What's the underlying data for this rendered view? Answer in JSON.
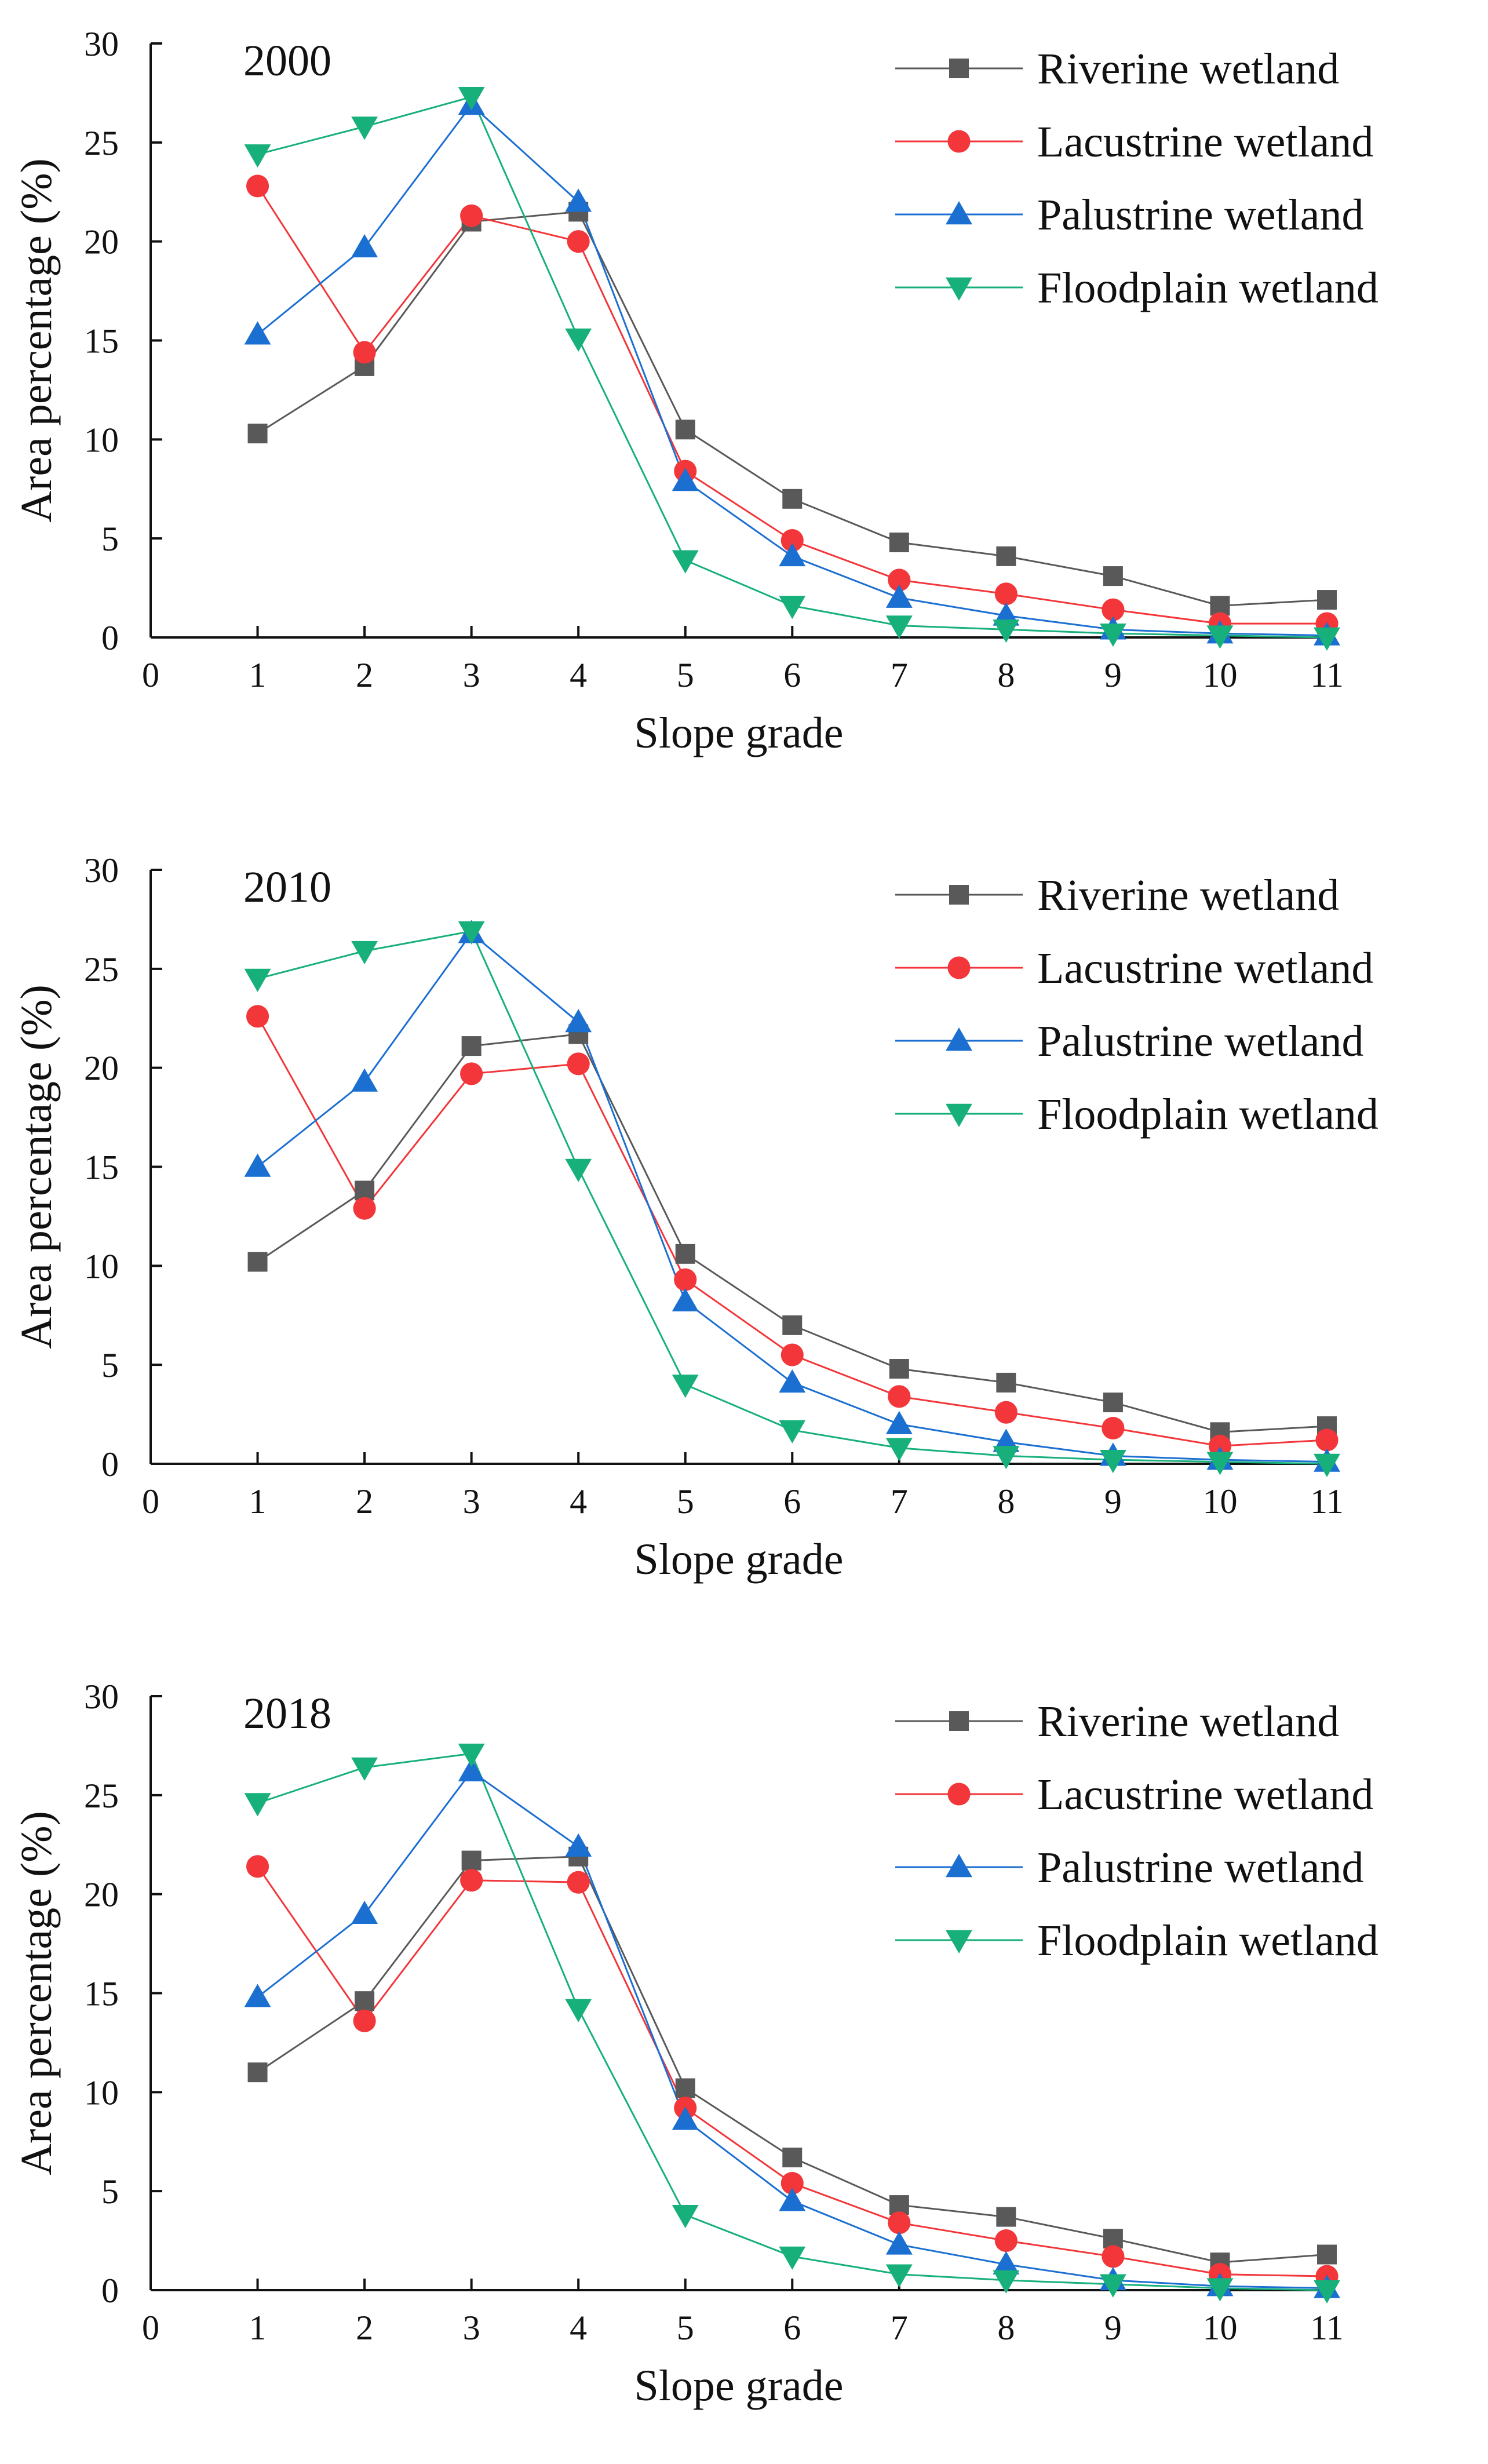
{
  "chart_data": [
    {
      "type": "line",
      "title": "2000",
      "xlabel": "Slope grade",
      "ylabel": "Area percentage (%)",
      "xlim": [
        0,
        11
      ],
      "ylim": [
        0,
        30
      ],
      "xticks": [
        "0",
        "1",
        "2",
        "3",
        "4",
        "5",
        "6",
        "7",
        "8",
        "9",
        "10",
        "11"
      ],
      "yticks": [
        "0",
        "5",
        "10",
        "15",
        "20",
        "25",
        "30"
      ],
      "grid": false,
      "legend_position": "top-right",
      "x": [
        1,
        2,
        3,
        4,
        5,
        6,
        7,
        8,
        9,
        10,
        11
      ],
      "series": [
        {
          "name": "Riverine wetland",
          "color": "#595959",
          "marker": "square",
          "values": [
            10.3,
            13.7,
            21.0,
            21.5,
            10.5,
            7.0,
            4.8,
            4.1,
            3.1,
            1.6,
            1.9
          ]
        },
        {
          "name": "Lacustrine wetland",
          "color": "#f2363a",
          "marker": "circle",
          "values": [
            22.8,
            14.4,
            21.3,
            20.0,
            8.4,
            4.9,
            2.9,
            2.2,
            1.4,
            0.7,
            0.7
          ]
        },
        {
          "name": "Palustrine wetland",
          "color": "#1b6fd1",
          "marker": "triangle-up",
          "values": [
            15.3,
            19.7,
            26.9,
            22.0,
            7.9,
            4.1,
            2.0,
            1.1,
            0.4,
            0.2,
            0.1
          ]
        },
        {
          "name": "Floodplain wetland",
          "color": "#17b07a",
          "marker": "triangle-down",
          "values": [
            24.4,
            25.8,
            27.3,
            15.1,
            3.9,
            1.6,
            0.6,
            0.4,
            0.2,
            0.1,
            0.0
          ]
        }
      ]
    },
    {
      "type": "line",
      "title": "2010",
      "xlabel": "Slope grade",
      "ylabel": "Area percentage (%)",
      "xlim": [
        0,
        11
      ],
      "ylim": [
        0,
        30
      ],
      "xticks": [
        "0",
        "1",
        "2",
        "3",
        "4",
        "5",
        "6",
        "7",
        "8",
        "9",
        "10",
        "11"
      ],
      "yticks": [
        "0",
        "5",
        "10",
        "15",
        "20",
        "25",
        "30"
      ],
      "grid": false,
      "legend_position": "top-right",
      "x": [
        1,
        2,
        3,
        4,
        5,
        6,
        7,
        8,
        9,
        10,
        11
      ],
      "series": [
        {
          "name": "Riverine wetland",
          "color": "#595959",
          "marker": "square",
          "values": [
            10.2,
            13.8,
            21.1,
            21.7,
            10.6,
            7.0,
            4.8,
            4.1,
            3.1,
            1.6,
            1.9
          ]
        },
        {
          "name": "Lacustrine wetland",
          "color": "#f2363a",
          "marker": "circle",
          "values": [
            22.6,
            12.9,
            19.7,
            20.2,
            9.3,
            5.5,
            3.4,
            2.6,
            1.8,
            0.9,
            1.2
          ]
        },
        {
          "name": "Palustrine wetland",
          "color": "#1b6fd1",
          "marker": "triangle-up",
          "values": [
            15.0,
            19.3,
            26.8,
            22.3,
            8.2,
            4.1,
            2.0,
            1.1,
            0.4,
            0.2,
            0.1
          ]
        },
        {
          "name": "Floodplain wetland",
          "color": "#17b07a",
          "marker": "triangle-down",
          "values": [
            24.5,
            25.9,
            26.9,
            14.9,
            4.0,
            1.7,
            0.8,
            0.4,
            0.2,
            0.1,
            0.0
          ]
        }
      ]
    },
    {
      "type": "line",
      "title": "2018",
      "xlabel": "Slope grade",
      "ylabel": "Area percentage (%)",
      "xlim": [
        0,
        11
      ],
      "ylim": [
        0,
        30
      ],
      "xticks": [
        "0",
        "1",
        "2",
        "3",
        "4",
        "5",
        "6",
        "7",
        "8",
        "9",
        "10",
        "11"
      ],
      "yticks": [
        "0",
        "5",
        "10",
        "15",
        "20",
        "25",
        "30"
      ],
      "grid": false,
      "legend_position": "top-right",
      "x": [
        1,
        2,
        3,
        4,
        5,
        6,
        7,
        8,
        9,
        10,
        11
      ],
      "series": [
        {
          "name": "Riverine wetland",
          "color": "#595959",
          "marker": "square",
          "values": [
            11.0,
            14.6,
            21.7,
            21.9,
            10.2,
            6.7,
            4.3,
            3.7,
            2.6,
            1.4,
            1.8
          ]
        },
        {
          "name": "Lacustrine wetland",
          "color": "#f2363a",
          "marker": "circle",
          "values": [
            21.4,
            13.6,
            20.7,
            20.6,
            9.2,
            5.4,
            3.4,
            2.5,
            1.7,
            0.8,
            0.7
          ]
        },
        {
          "name": "Palustrine wetland",
          "color": "#1b6fd1",
          "marker": "triangle-up",
          "values": [
            14.8,
            19.0,
            26.2,
            22.4,
            8.6,
            4.5,
            2.3,
            1.3,
            0.5,
            0.2,
            0.1
          ]
        },
        {
          "name": "Floodplain wetland",
          "color": "#17b07a",
          "marker": "triangle-down",
          "values": [
            24.6,
            26.4,
            27.1,
            14.2,
            3.8,
            1.7,
            0.8,
            0.5,
            0.3,
            0.1,
            0.0
          ]
        }
      ]
    }
  ]
}
